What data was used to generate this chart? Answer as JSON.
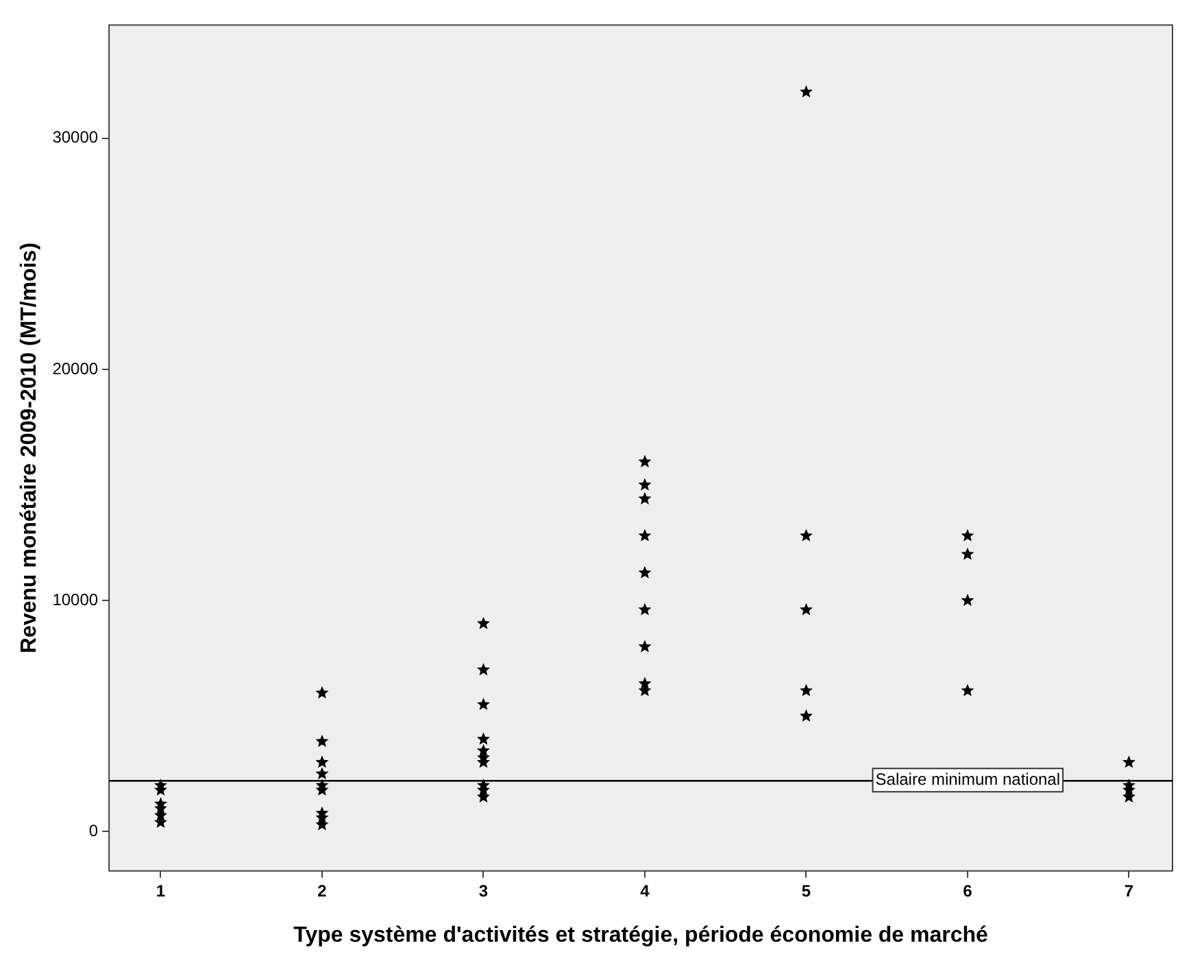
{
  "chart_data": {
    "type": "scatter",
    "xlabel": "Type système d'activités et stratégie, période économie de marché",
    "ylabel": "Revenu monétaire 2009-2010 (MT/mois)",
    "series": [
      {
        "color": "#000000",
        "x": [
          1,
          1,
          1,
          1,
          1,
          1,
          2,
          2,
          2,
          2,
          2,
          2,
          2,
          2,
          2,
          3,
          3,
          3,
          3,
          3,
          3,
          3,
          3,
          3,
          3,
          4,
          4,
          4,
          4,
          4,
          4,
          4,
          4,
          4,
          5,
          5,
          5,
          5,
          5,
          6,
          6,
          6,
          6,
          7,
          7,
          7,
          7
        ],
        "values": [
          2000,
          1800,
          1200,
          1000,
          700,
          400,
          6000,
          3900,
          3000,
          2500,
          2000,
          1800,
          800,
          600,
          300,
          9000,
          7000,
          5500,
          4000,
          3500,
          3200,
          3000,
          2000,
          1800,
          1500,
          16000,
          15000,
          14400,
          12800,
          11200,
          9600,
          8000,
          6400,
          6100,
          32000,
          12800,
          9600,
          6100,
          5000,
          12800,
          12000,
          10000,
          6100,
          3000,
          2000,
          1800,
          1500
        ]
      }
    ],
    "xlim": [
      0.68,
      7.27
    ],
    "xticks": [
      1,
      2,
      3,
      4,
      5,
      6,
      7
    ],
    "ylim": [
      -1700,
      34900
    ],
    "yticks": [
      0,
      10000,
      20000,
      30000
    ],
    "ref_lines": [
      {
        "axis": "y",
        "value": 2200,
        "label": "Salaire minimum national",
        "color": "#000000"
      }
    ],
    "marker": "star",
    "grid": false,
    "legend": false
  }
}
